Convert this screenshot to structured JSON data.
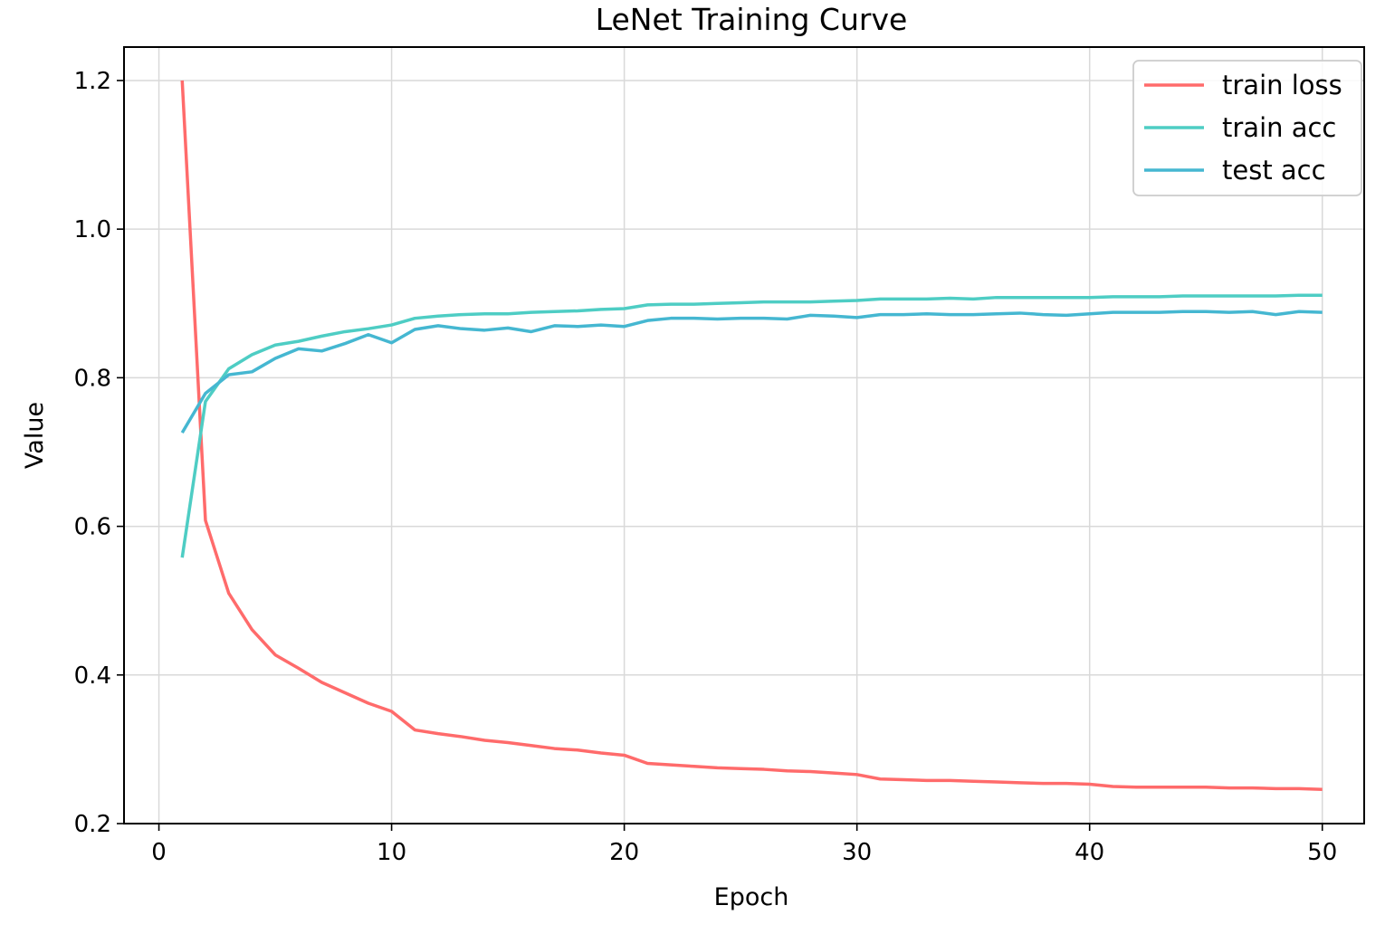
{
  "chart_data": {
    "type": "line",
    "title": "LeNet Training Curve",
    "xlabel": "Epoch",
    "ylabel": "Value",
    "xlim": [
      -1.5,
      51.8
    ],
    "ylim": [
      0.2,
      1.245
    ],
    "xticks": [
      0,
      10,
      20,
      30,
      40,
      50
    ],
    "yticks": [
      0.2,
      0.4,
      0.6,
      0.8,
      1.0,
      1.2
    ],
    "ytick_labels": [
      "0.2",
      "0.4",
      "0.6",
      "0.8",
      "1.0",
      "1.2"
    ],
    "grid": true,
    "legend_position": "top-right",
    "x": [
      1,
      2,
      3,
      4,
      5,
      6,
      7,
      8,
      9,
      10,
      11,
      12,
      13,
      14,
      15,
      16,
      17,
      18,
      19,
      20,
      21,
      22,
      23,
      24,
      25,
      26,
      27,
      28,
      29,
      30,
      31,
      32,
      33,
      34,
      35,
      36,
      37,
      38,
      39,
      40,
      41,
      42,
      43,
      44,
      45,
      46,
      47,
      48,
      49,
      50
    ],
    "series": [
      {
        "name": "train loss",
        "color": "#ff6b6b",
        "values": [
          1.2,
          0.608,
          0.51,
          0.461,
          0.427,
          0.409,
          0.39,
          0.376,
          0.362,
          0.351,
          0.326,
          0.321,
          0.317,
          0.312,
          0.309,
          0.305,
          0.301,
          0.299,
          0.295,
          0.292,
          0.281,
          0.279,
          0.277,
          0.275,
          0.274,
          0.273,
          0.271,
          0.27,
          0.268,
          0.266,
          0.26,
          0.259,
          0.258,
          0.258,
          0.257,
          0.256,
          0.255,
          0.254,
          0.254,
          0.253,
          0.25,
          0.249,
          0.249,
          0.249,
          0.249,
          0.248,
          0.248,
          0.247,
          0.247,
          0.246
        ]
      },
      {
        "name": "train acc",
        "color": "#4ecdc4",
        "values": [
          0.558,
          0.768,
          0.812,
          0.831,
          0.844,
          0.849,
          0.856,
          0.862,
          0.866,
          0.871,
          0.88,
          0.883,
          0.885,
          0.886,
          0.886,
          0.888,
          0.889,
          0.89,
          0.892,
          0.893,
          0.898,
          0.899,
          0.899,
          0.9,
          0.901,
          0.902,
          0.902,
          0.902,
          0.903,
          0.904,
          0.906,
          0.906,
          0.906,
          0.907,
          0.906,
          0.908,
          0.908,
          0.908,
          0.908,
          0.908,
          0.909,
          0.909,
          0.909,
          0.91,
          0.91,
          0.91,
          0.91,
          0.91,
          0.911,
          0.911
        ]
      },
      {
        "name": "test acc",
        "color": "#45b7d1",
        "values": [
          0.726,
          0.779,
          0.804,
          0.808,
          0.826,
          0.839,
          0.836,
          0.846,
          0.858,
          0.847,
          0.865,
          0.87,
          0.866,
          0.864,
          0.867,
          0.862,
          0.87,
          0.869,
          0.871,
          0.869,
          0.877,
          0.88,
          0.88,
          0.879,
          0.88,
          0.88,
          0.879,
          0.884,
          0.883,
          0.881,
          0.885,
          0.885,
          0.886,
          0.885,
          0.885,
          0.886,
          0.887,
          0.885,
          0.884,
          0.886,
          0.888,
          0.888,
          0.888,
          0.889,
          0.889,
          0.888,
          0.889,
          0.885,
          0.889,
          0.888
        ]
      }
    ]
  }
}
